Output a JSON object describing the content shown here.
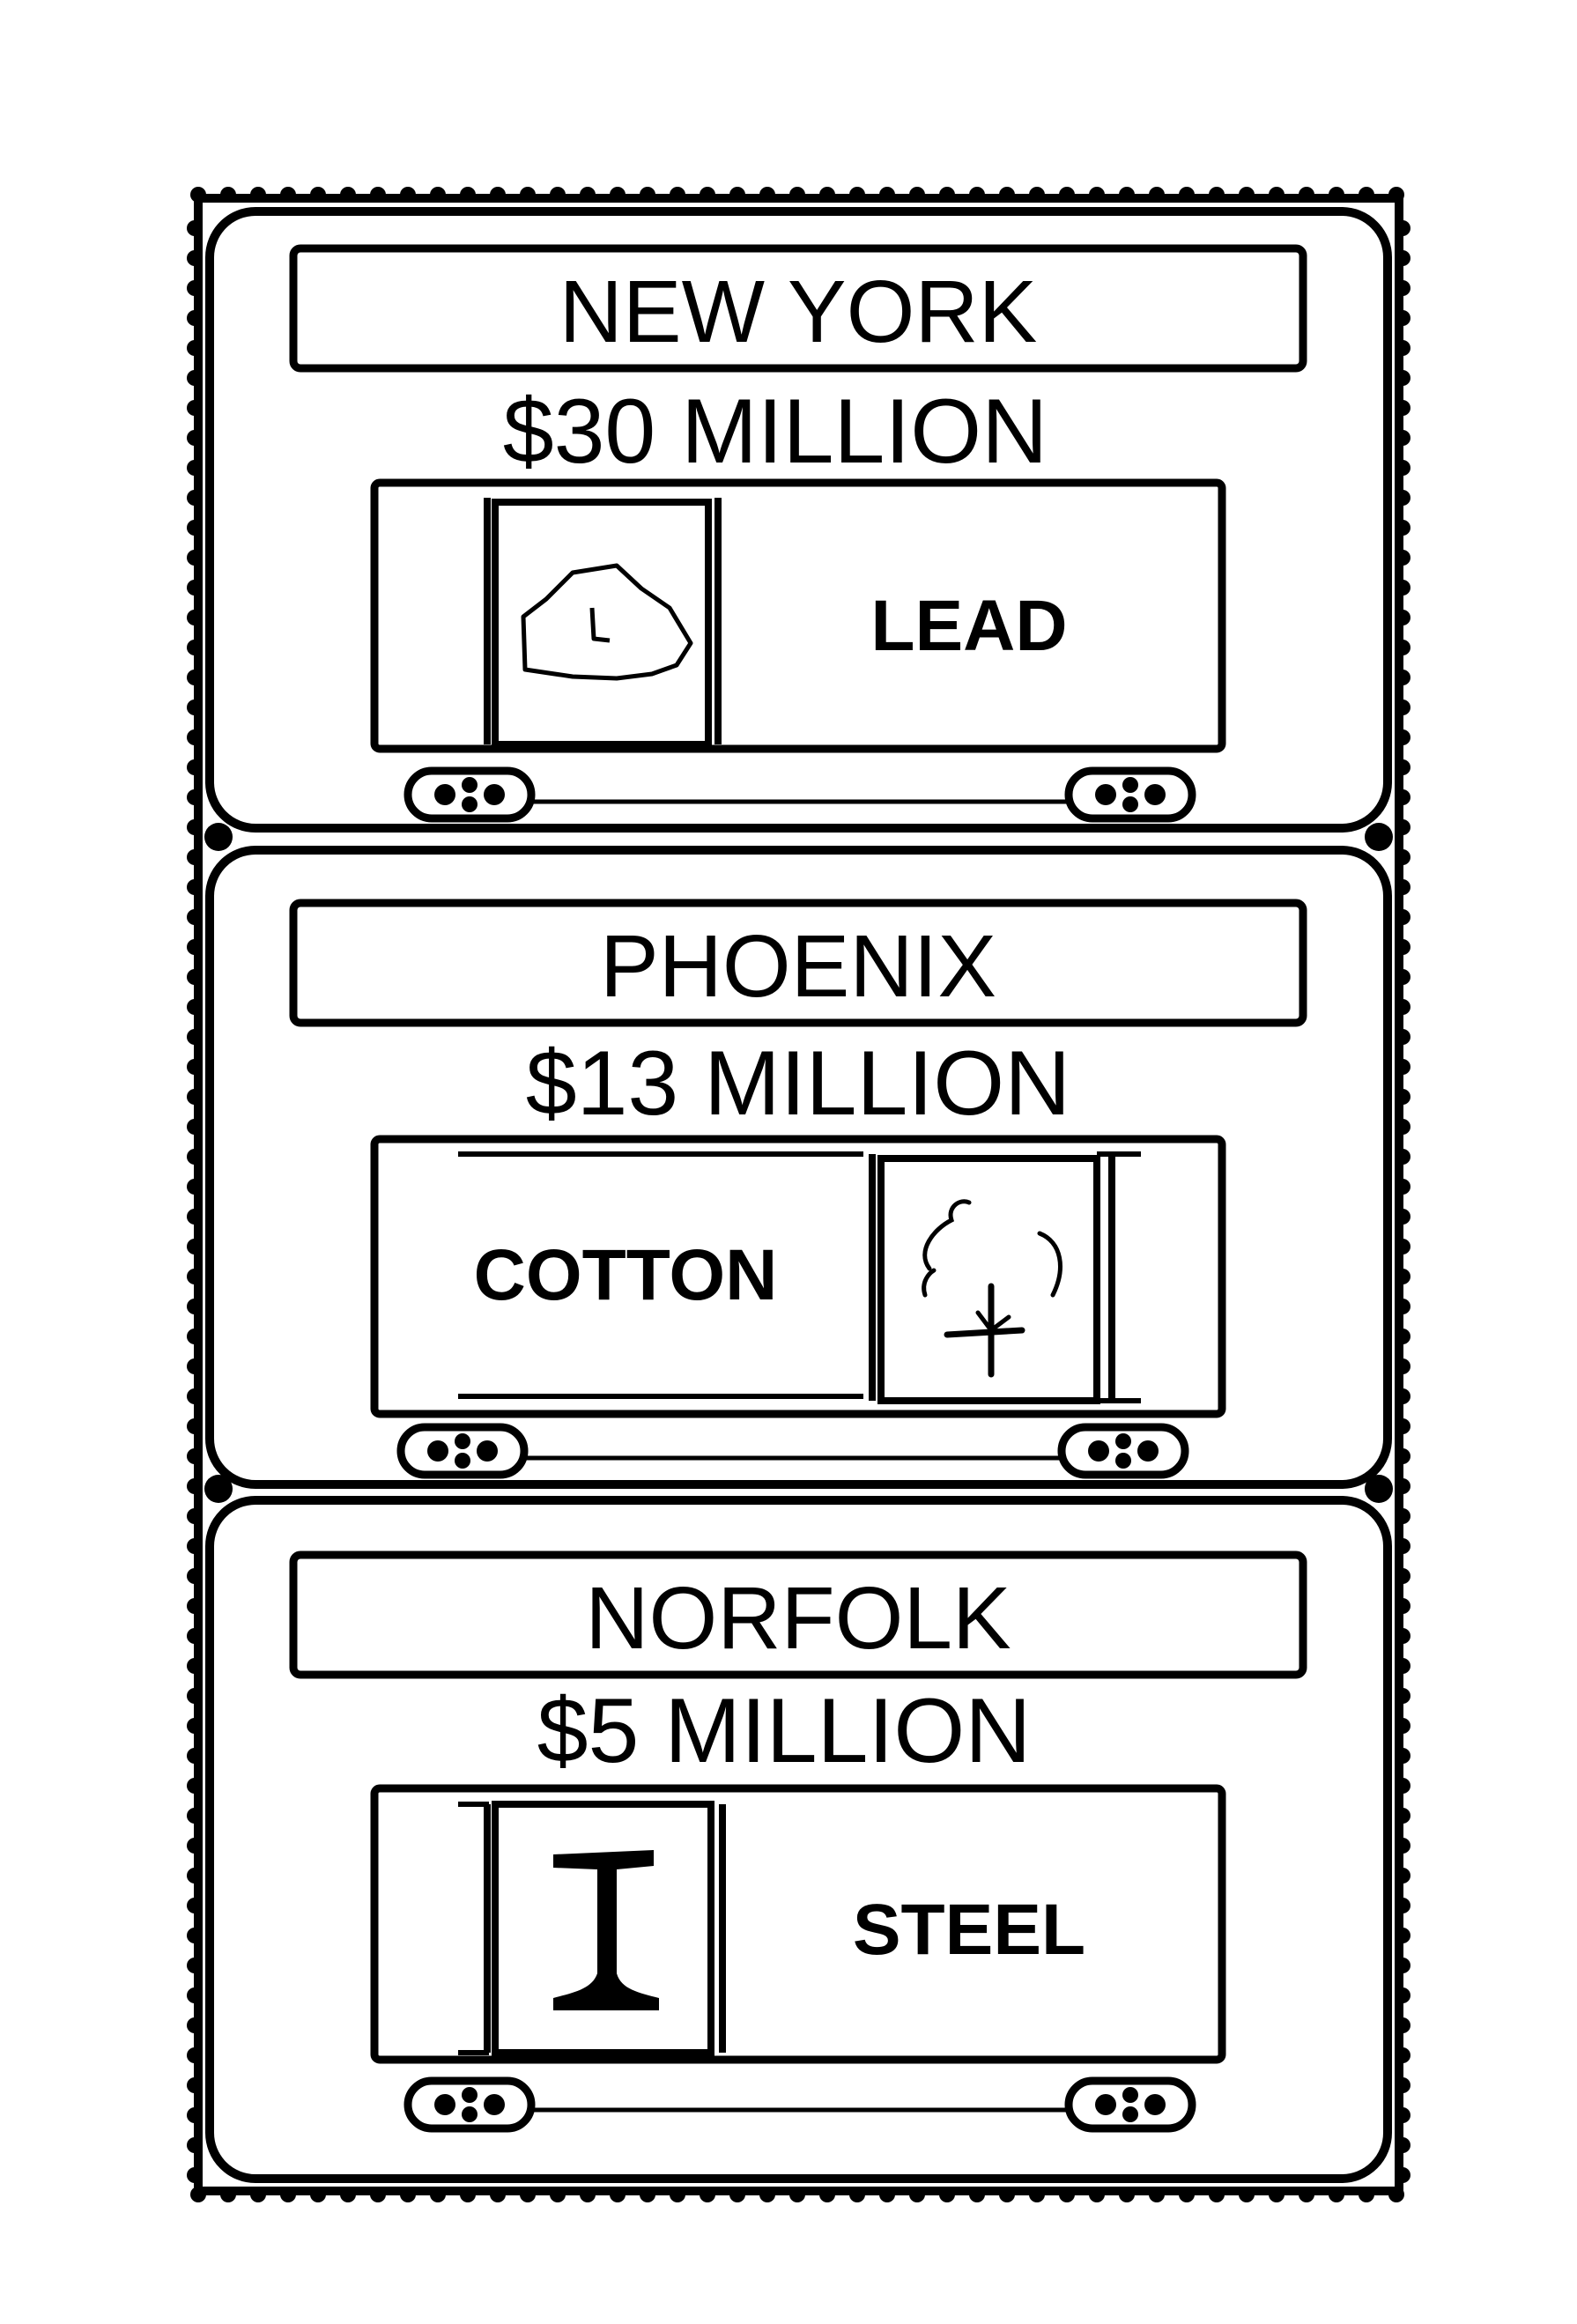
{
  "colors": {
    "ink": "#000000",
    "paper": "#ffffff"
  },
  "cards": [
    {
      "city": "NEW YORK",
      "value": "$30 MILLION",
      "commodity": "LEAD",
      "icon": "ore-lump-icon",
      "icon_side": "left"
    },
    {
      "city": "PHOENIX",
      "value": "$13 MILLION",
      "commodity": "COTTON",
      "icon": "cotton-boll-icon",
      "icon_side": "right"
    },
    {
      "city": "NORFOLK",
      "value": "$5 MILLION",
      "commodity": "STEEL",
      "icon": "steel-i-beam-icon",
      "icon_side": "left"
    }
  ]
}
